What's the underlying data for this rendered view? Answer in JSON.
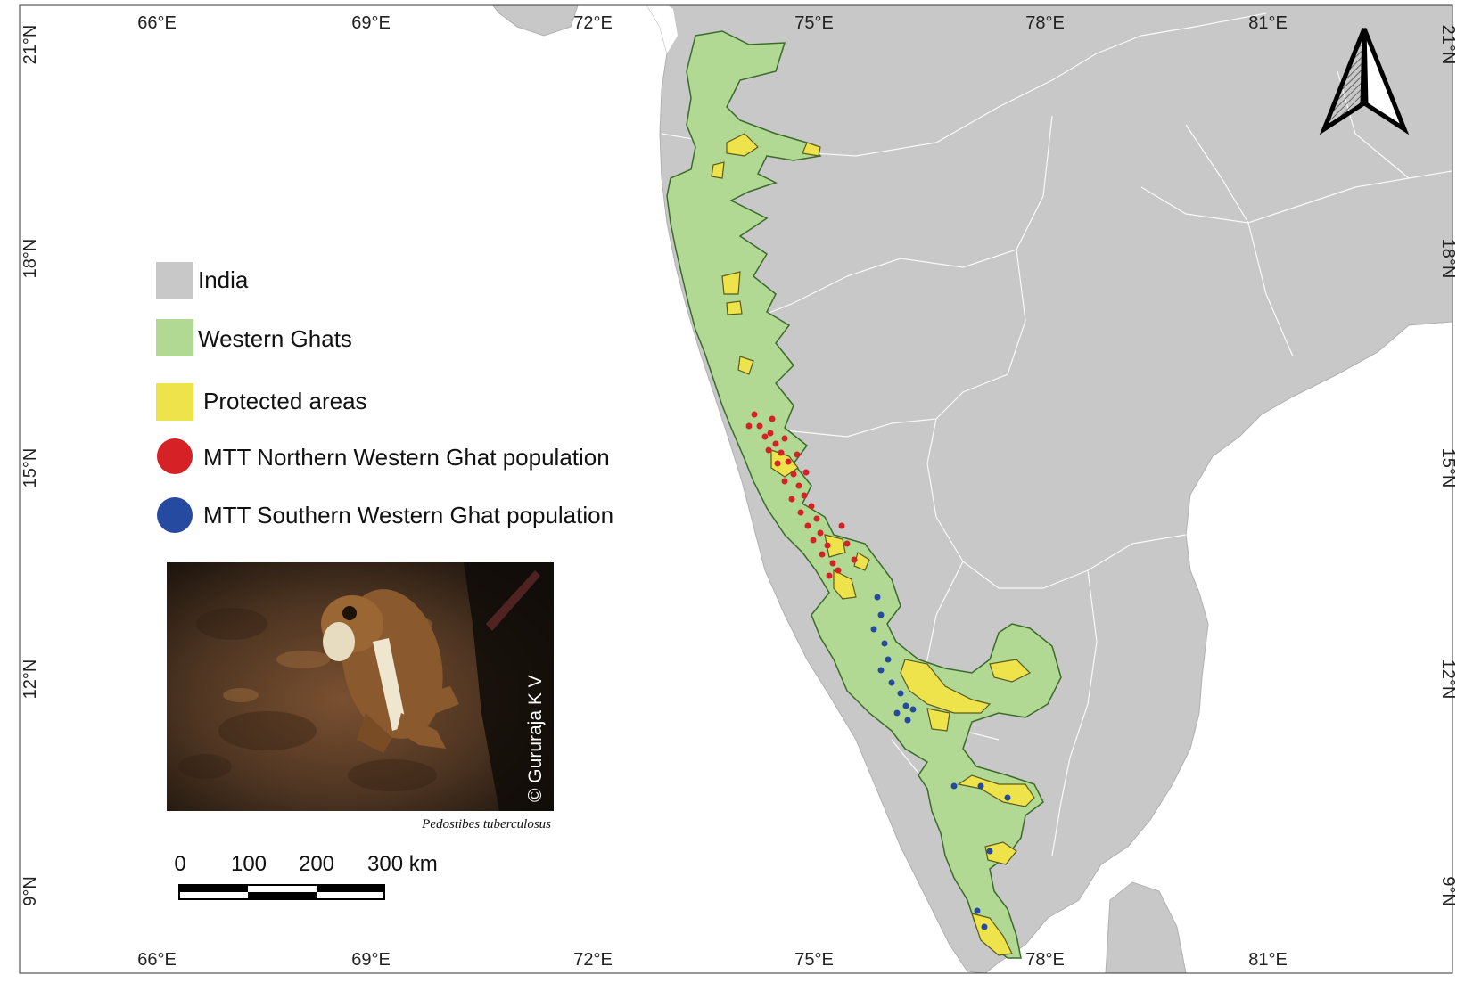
{
  "map": {
    "graticule": {
      "longitude_labels": [
        "66°E",
        "69°E",
        "72°E",
        "75°E",
        "78°E",
        "81°E"
      ],
      "latitude_labels": [
        "21°N",
        "18°N",
        "15°N",
        "12°N",
        "9°N"
      ]
    },
    "legend": [
      {
        "label": "India",
        "color": "#c8c8c8",
        "symbol": "square"
      },
      {
        "label": "Western Ghats",
        "color": "#b1d993",
        "symbol": "square"
      },
      {
        "label": "Protected areas",
        "color": "#eee34a",
        "symbol": "square"
      },
      {
        "label": "MTT Northern Western Ghat population",
        "color": "#d62226",
        "symbol": "circle"
      },
      {
        "label": "MTT Southern Western Ghat population",
        "color": "#254aa0",
        "symbol": "circle"
      }
    ],
    "photo": {
      "credit": "© Gururaja K V",
      "caption": "Pedostibes tuberculosus"
    },
    "scale_bar": {
      "labels": [
        "0",
        "100",
        "200",
        "300 km"
      ]
    },
    "north_arrow": {
      "icon": "north-arrow-icon"
    }
  }
}
